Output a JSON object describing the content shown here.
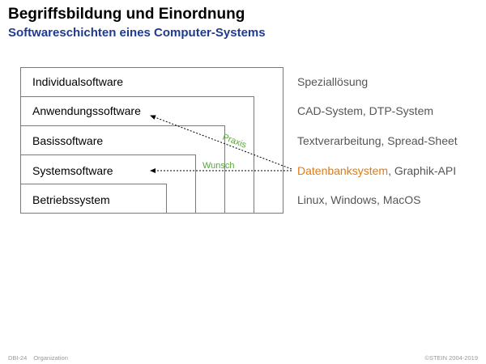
{
  "header": {
    "title": "Begriffsbildung und Einordnung",
    "subtitle": "Softwareschichten eines Computer-Systems"
  },
  "diagram": {
    "layers": [
      {
        "label": "Individualsoftware"
      },
      {
        "label": "Anwendungssoftware"
      },
      {
        "label": "Basissoftware"
      },
      {
        "label": "Systemsoftware"
      },
      {
        "label": "Betriebssystem"
      }
    ],
    "examples": [
      {
        "text": "Speziallösung"
      },
      {
        "text": "CAD-System, DTP-System"
      },
      {
        "text": "Textverarbeitung, Spread-Sheet"
      },
      {
        "highlight": "Datenbanksystem",
        "rest": ", Graphik-API"
      },
      {
        "text": "Linux, Windows, MacOS"
      }
    ],
    "arrows": {
      "praxis_label": "Praxis",
      "wunsch_label": "Wunsch"
    },
    "colors": {
      "box_stroke": "#7a7a7a",
      "example_text": "#555555",
      "highlight": "#e07b10",
      "arrow_label": "#55a832",
      "arrow_line": "#000000"
    }
  },
  "footer": {
    "page": "DBI-24",
    "section": "Organization",
    "copyright": "©STEIN 2004-2019"
  }
}
